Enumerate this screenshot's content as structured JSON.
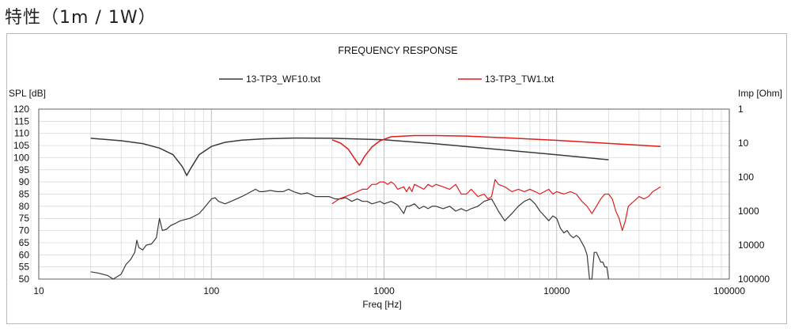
{
  "heading": "特性（1m / 1W）",
  "chart_data": {
    "type": "line",
    "title": "FREQUENCY RESPONSE",
    "xlabel": "Freq [Hz]",
    "ylabel_left": "SPL [dB]",
    "ylabel_right": "Imp [Ohm]",
    "x_scale": "log",
    "xlim": [
      10,
      100000
    ],
    "x_ticks": [
      "10",
      "100",
      "1000",
      "10000",
      "100000"
    ],
    "ylim": [
      50,
      120
    ],
    "y_ticks": [
      "120",
      "115",
      "110",
      "105",
      "100",
      "95",
      "90",
      "85",
      "80",
      "75",
      "70",
      "65",
      "60",
      "55",
      "50"
    ],
    "y2_scale": "log",
    "y2lim": [
      1,
      100000
    ],
    "y2_ticks": [
      "1",
      "10",
      "100",
      "1000",
      "10000",
      "100000"
    ],
    "grid": true,
    "legend": [
      "13-TP3_WF10.txt",
      "13-TP3_TW1.txt"
    ],
    "colors": {
      "wf10": "#3a3a3a",
      "tw1": "#e01c1c",
      "grid": "#d4d4d4",
      "axis": "#444444"
    },
    "series": [
      {
        "name": "13-TP3_WF10.txt",
        "kind": "spl",
        "axis": "left",
        "points": [
          [
            20,
            53
          ],
          [
            22,
            52.5
          ],
          [
            25,
            51.5
          ],
          [
            27,
            50
          ],
          [
            30,
            52
          ],
          [
            32,
            56
          ],
          [
            34,
            58
          ],
          [
            36,
            61
          ],
          [
            37,
            66
          ],
          [
            38,
            63
          ],
          [
            40,
            62
          ],
          [
            42,
            64
          ],
          [
            45,
            64.5
          ],
          [
            48,
            67
          ],
          [
            50,
            75
          ],
          [
            52,
            70
          ],
          [
            55,
            70.5
          ],
          [
            58,
            72
          ],
          [
            62,
            73
          ],
          [
            66,
            74
          ],
          [
            70,
            74.5
          ],
          [
            75,
            75
          ],
          [
            80,
            76
          ],
          [
            85,
            77
          ],
          [
            90,
            79
          ],
          [
            95,
            81
          ],
          [
            100,
            83
          ],
          [
            105,
            83.5
          ],
          [
            110,
            82
          ],
          [
            120,
            81
          ],
          [
            130,
            82
          ],
          [
            140,
            83
          ],
          [
            150,
            84
          ],
          [
            160,
            85
          ],
          [
            170,
            86
          ],
          [
            180,
            87
          ],
          [
            190,
            86
          ],
          [
            200,
            86
          ],
          [
            220,
            86.5
          ],
          [
            240,
            86
          ],
          [
            260,
            86
          ],
          [
            280,
            87
          ],
          [
            300,
            86
          ],
          [
            330,
            85
          ],
          [
            360,
            85.5
          ],
          [
            400,
            84
          ],
          [
            440,
            84
          ],
          [
            480,
            84
          ],
          [
            520,
            83
          ],
          [
            560,
            83
          ],
          [
            600,
            83.5
          ],
          [
            650,
            82
          ],
          [
            700,
            83
          ],
          [
            750,
            82
          ],
          [
            800,
            82
          ],
          [
            850,
            81
          ],
          [
            900,
            81.5
          ],
          [
            950,
            82
          ],
          [
            1000,
            81
          ],
          [
            1100,
            82
          ],
          [
            1200,
            80.5
          ],
          [
            1300,
            77
          ],
          [
            1350,
            80
          ],
          [
            1400,
            80
          ],
          [
            1500,
            81
          ],
          [
            1600,
            79
          ],
          [
            1700,
            80
          ],
          [
            1800,
            79
          ],
          [
            1900,
            80
          ],
          [
            2000,
            80
          ],
          [
            2200,
            79
          ],
          [
            2400,
            80
          ],
          [
            2600,
            78
          ],
          [
            2800,
            79
          ],
          [
            3000,
            78
          ],
          [
            3200,
            79
          ],
          [
            3500,
            80
          ],
          [
            3800,
            82
          ],
          [
            4200,
            83
          ],
          [
            4600,
            78
          ],
          [
            5000,
            74
          ],
          [
            5500,
            77
          ],
          [
            6000,
            80
          ],
          [
            6500,
            82
          ],
          [
            7000,
            83
          ],
          [
            7500,
            81
          ],
          [
            8000,
            78
          ],
          [
            8500,
            76
          ],
          [
            9000,
            74
          ],
          [
            9500,
            76
          ],
          [
            10000,
            75
          ],
          [
            10500,
            71
          ],
          [
            11000,
            69
          ],
          [
            11500,
            70
          ],
          [
            12000,
            68
          ],
          [
            12500,
            67
          ],
          [
            13000,
            68
          ],
          [
            13500,
            67
          ],
          [
            14000,
            65
          ],
          [
            14500,
            63
          ],
          [
            15000,
            60
          ],
          [
            15500,
            50
          ],
          [
            16000,
            50
          ],
          [
            16500,
            61
          ],
          [
            17000,
            61
          ],
          [
            17500,
            59
          ],
          [
            18000,
            57
          ],
          [
            18500,
            57
          ],
          [
            19000,
            55
          ],
          [
            19500,
            55
          ],
          [
            20000,
            50
          ]
        ]
      },
      {
        "name": "13-TP3_WF10.txt",
        "kind": "impedance",
        "axis": "right",
        "points": [
          [
            20,
            7.2
          ],
          [
            30,
            8.5
          ],
          [
            40,
            10.3
          ],
          [
            50,
            14
          ],
          [
            60,
            22
          ],
          [
            68,
            50
          ],
          [
            72,
            90
          ],
          [
            76,
            55
          ],
          [
            85,
            22
          ],
          [
            100,
            12.5
          ],
          [
            120,
            9.5
          ],
          [
            150,
            8.2
          ],
          [
            200,
            7.5
          ],
          [
            300,
            7.1
          ],
          [
            500,
            7.2
          ],
          [
            1000,
            8
          ],
          [
            2000,
            10.5
          ],
          [
            5000,
            16
          ],
          [
            10000,
            22
          ],
          [
            20000,
            31
          ]
        ]
      },
      {
        "name": "13-TP3_TW1.txt",
        "kind": "spl",
        "axis": "left",
        "points": [
          [
            500,
            81
          ],
          [
            550,
            83
          ],
          [
            600,
            84
          ],
          [
            650,
            85
          ],
          [
            700,
            86
          ],
          [
            750,
            87
          ],
          [
            800,
            87
          ],
          [
            850,
            89
          ],
          [
            900,
            89
          ],
          [
            950,
            90
          ],
          [
            1000,
            90
          ],
          [
            1050,
            89
          ],
          [
            1100,
            90
          ],
          [
            1150,
            89
          ],
          [
            1200,
            87
          ],
          [
            1300,
            88
          ],
          [
            1350,
            86
          ],
          [
            1400,
            88
          ],
          [
            1450,
            86
          ],
          [
            1500,
            89
          ],
          [
            1600,
            88
          ],
          [
            1700,
            87
          ],
          [
            1800,
            89
          ],
          [
            1900,
            88
          ],
          [
            2000,
            89
          ],
          [
            2200,
            88
          ],
          [
            2400,
            87
          ],
          [
            2600,
            89
          ],
          [
            2800,
            85
          ],
          [
            3000,
            85
          ],
          [
            3200,
            87
          ],
          [
            3500,
            84
          ],
          [
            3800,
            85
          ],
          [
            4000,
            83
          ],
          [
            4200,
            84
          ],
          [
            4400,
            91
          ],
          [
            4600,
            89
          ],
          [
            5000,
            88
          ],
          [
            5500,
            86
          ],
          [
            6000,
            87
          ],
          [
            6500,
            86
          ],
          [
            7000,
            87
          ],
          [
            7500,
            86
          ],
          [
            8000,
            85
          ],
          [
            8500,
            86
          ],
          [
            9000,
            87
          ],
          [
            9500,
            85
          ],
          [
            10000,
            86
          ],
          [
            11000,
            85
          ],
          [
            12000,
            86
          ],
          [
            13000,
            85
          ],
          [
            14000,
            82
          ],
          [
            15000,
            80
          ],
          [
            16000,
            77
          ],
          [
            17000,
            80
          ],
          [
            18000,
            83
          ],
          [
            19000,
            85
          ],
          [
            20000,
            85
          ],
          [
            21000,
            83
          ],
          [
            22000,
            78
          ],
          [
            23000,
            75
          ],
          [
            24000,
            70
          ],
          [
            25000,
            74
          ],
          [
            26000,
            80
          ],
          [
            28000,
            82
          ],
          [
            30000,
            84
          ],
          [
            32000,
            83
          ],
          [
            34000,
            84
          ],
          [
            36000,
            86
          ],
          [
            38000,
            87
          ],
          [
            40000,
            88
          ]
        ]
      },
      {
        "name": "13-TP3_TW1.txt",
        "kind": "impedance",
        "axis": "right",
        "points": [
          [
            500,
            8
          ],
          [
            560,
            10
          ],
          [
            620,
            15
          ],
          [
            680,
            30
          ],
          [
            720,
            45
          ],
          [
            770,
            25
          ],
          [
            850,
            13
          ],
          [
            950,
            8.5
          ],
          [
            1100,
            6.5
          ],
          [
            1500,
            6
          ],
          [
            2000,
            6
          ],
          [
            3000,
            6.2
          ],
          [
            5000,
            7
          ],
          [
            10000,
            8.3
          ],
          [
            20000,
            10.2
          ],
          [
            40000,
            12.5
          ]
        ]
      }
    ]
  }
}
